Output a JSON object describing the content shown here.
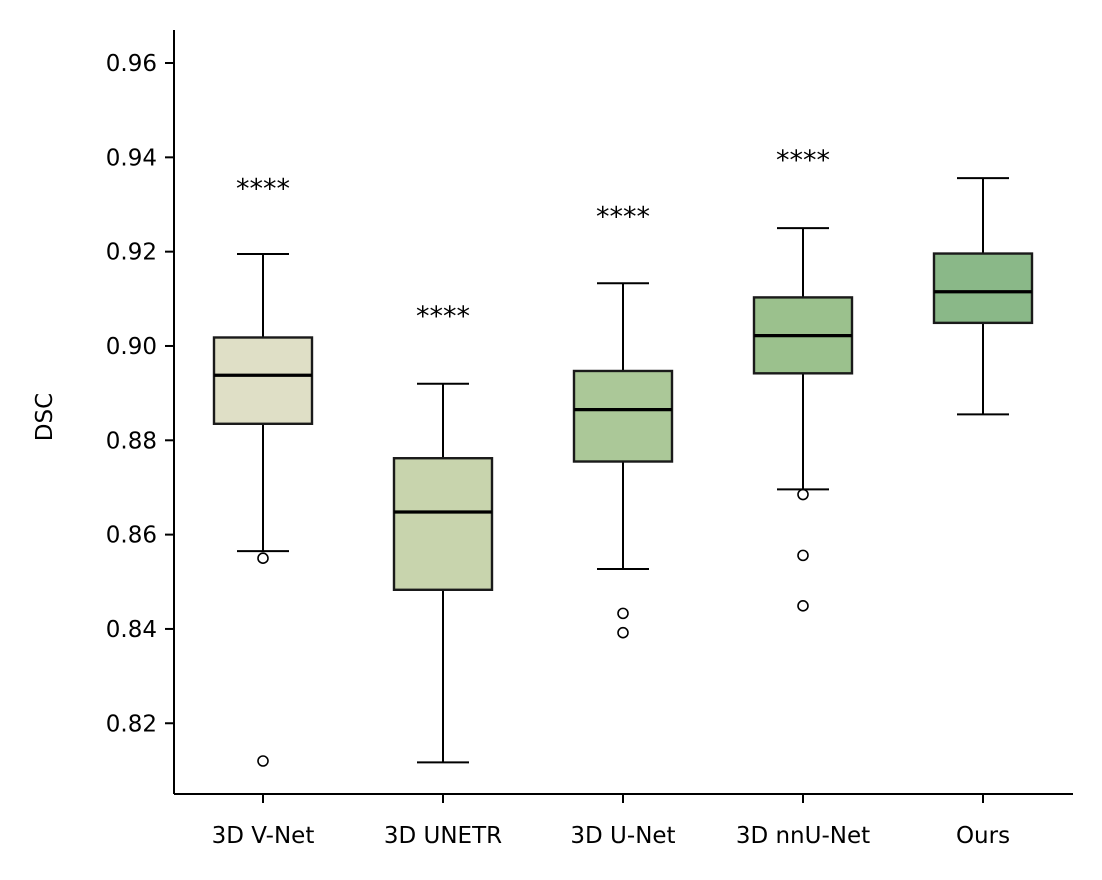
{
  "chart_data": {
    "type": "box",
    "title": "",
    "xlabel": "",
    "ylabel": "DSC",
    "ylim": [
      0.805,
      0.967
    ],
    "yticks": [
      0.82,
      0.84,
      0.86,
      0.88,
      0.9,
      0.92,
      0.94,
      0.96
    ],
    "ytick_labels": [
      "0.82",
      "0.84",
      "0.86",
      "0.88",
      "0.90",
      "0.92",
      "0.94",
      "0.96"
    ],
    "grid": false,
    "categories": [
      "3D V-Net",
      "3D UNETR",
      "3D U-Net",
      "3D nnU-Net",
      "Ours"
    ],
    "boxes": [
      {
        "name": "3D V-Net",
        "whisker_low": 0.8565,
        "q1": 0.8835,
        "median": 0.8938,
        "q3": 0.9018,
        "whisker_high": 0.9195,
        "outliers": [
          0.855,
          0.812
        ],
        "significance": "****",
        "sig_y": 0.9315,
        "color": "#dfdfc6"
      },
      {
        "name": "3D UNETR",
        "whisker_low": 0.8117,
        "q1": 0.8483,
        "median": 0.8648,
        "q3": 0.8762,
        "whisker_high": 0.892,
        "outliers": [],
        "significance": "****",
        "sig_y": 0.9045,
        "color": "#c8d4ad"
      },
      {
        "name": "3D U-Net",
        "whisker_low": 0.8527,
        "q1": 0.8755,
        "median": 0.8865,
        "q3": 0.8947,
        "whisker_high": 0.9133,
        "outliers": [
          0.8433,
          0.8392
        ],
        "significance": "****",
        "sig_y": 0.9255,
        "color": "#abc898"
      },
      {
        "name": "3D nnU-Net",
        "whisker_low": 0.8696,
        "q1": 0.8942,
        "median": 0.9022,
        "q3": 0.9103,
        "whisker_high": 0.925,
        "outliers": [
          0.8685,
          0.8556,
          0.8449
        ],
        "significance": "****",
        "sig_y": 0.9375,
        "color": "#9bc18d"
      },
      {
        "name": "Ours",
        "whisker_low": 0.8855,
        "q1": 0.9049,
        "median": 0.9115,
        "q3": 0.9196,
        "whisker_high": 0.9356,
        "outliers": [],
        "significance": "",
        "sig_y": null,
        "color": "#8ab888"
      }
    ]
  }
}
